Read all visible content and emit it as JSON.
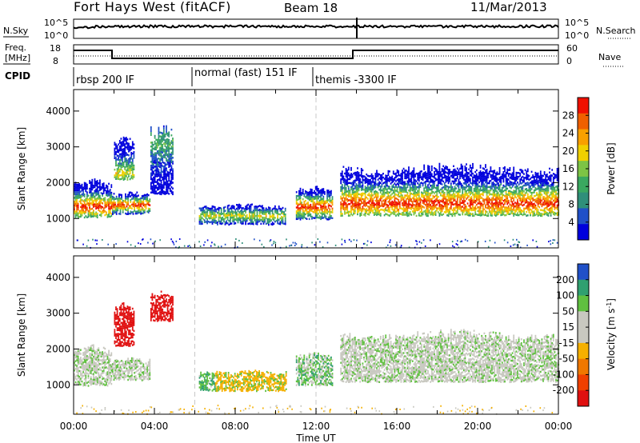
{
  "header": {
    "station": "Fort Hays West (fitACF)",
    "beam": "Beam 18",
    "date": "11/Mar/2013"
  },
  "strip_labels": {
    "nsky": "N.Sky",
    "nsky_top": "10^5",
    "nsky_bottom": "10^0",
    "nsearch": "N.Search",
    "nsearch_top": "10^5",
    "nsearch_bottom": "10^0",
    "freq_line1": "Freq.",
    "freq_line2": "[MHz]",
    "freq_top": "18",
    "freq_bottom": "8",
    "nave": "Nave",
    "nave_top": "60",
    "nave_bottom": "0",
    "cpid": "CPID"
  },
  "cpid_segments": [
    {
      "label": "rbsp 200 IF",
      "start_h": 0
    },
    {
      "label": "normal (fast) 151 IF",
      "start_h": 6
    },
    {
      "label": "themis -3300 IF",
      "start_h": 12
    }
  ],
  "colors": {
    "power_scale": [
      "#0000dd",
      "#2050c8",
      "#2f8f7a",
      "#3aa860",
      "#7dc445",
      "#f0d000",
      "#f8a000",
      "#f06000",
      "#f01000"
    ],
    "velocity_scale": [
      "#e01010",
      "#f04000",
      "#f07800",
      "#f5b000",
      "#c8c8c0",
      "#c8c8c0",
      "#60c040",
      "#30a070",
      "#2050c8",
      "#0000c8"
    ],
    "ground_scatter": "#c8c8c0"
  },
  "chart_data": [
    {
      "type": "heatmap",
      "title": "",
      "xlabel": "",
      "ylabel": "Slant Range [km]",
      "xlim_hours": [
        0,
        24
      ],
      "ylim_km": [
        180,
        4600
      ],
      "x_tick_labels": [],
      "y_ticks": [
        1000,
        2000,
        3000,
        4000
      ],
      "colorbar": {
        "label": "Power [dB]",
        "ticks": [
          4,
          8,
          12,
          16,
          20,
          24,
          28
        ],
        "range": [
          0,
          32
        ]
      },
      "regions": [
        {
          "x": [
            0.0,
            1.9
          ],
          "y": [
            1050,
            2100
          ],
          "peak_km": 1350,
          "level": "strong"
        },
        {
          "x": [
            1.9,
            3.8
          ],
          "y": [
            1150,
            1750
          ],
          "peak_km": 1400,
          "level": "strong"
        },
        {
          "x": [
            2.0,
            3.0
          ],
          "y": [
            2100,
            3300
          ],
          "peak_km": 2300,
          "level": "medium"
        },
        {
          "x": [
            3.8,
            4.9
          ],
          "y": [
            1700,
            3600
          ],
          "peak_km": 3100,
          "level": "weak"
        },
        {
          "x": [
            6.2,
            10.5
          ],
          "y": [
            850,
            1400
          ],
          "peak_km": 1100,
          "level": "medium"
        },
        {
          "x": [
            11.0,
            12.8
          ],
          "y": [
            1000,
            1900
          ],
          "peak_km": 1350,
          "level": "strong"
        },
        {
          "x": [
            13.2,
            24.0
          ],
          "y": [
            1100,
            2500
          ],
          "peak_km": 1450,
          "level": "strong"
        }
      ]
    },
    {
      "type": "heatmap",
      "title": "",
      "xlabel": "Time UT",
      "ylabel": "Slant Range [km]",
      "xlim_hours": [
        0,
        24
      ],
      "ylim_km": [
        180,
        4600
      ],
      "x_tick_labels": [
        "00:00",
        "04:00",
        "08:00",
        "12:00",
        "16:00",
        "20:00",
        "00:00"
      ],
      "y_ticks": [
        1000,
        2000,
        3000,
        4000
      ],
      "colorbar": {
        "label": "Velocity [m s^-1]",
        "ticks": [
          200,
          100,
          50,
          15,
          -15,
          -50,
          -100,
          -200
        ],
        "range": [
          -250,
          250
        ]
      },
      "regions": [
        {
          "x": [
            0.0,
            1.9
          ],
          "y": [
            1000,
            2100
          ],
          "velocity": 0
        },
        {
          "x": [
            1.9,
            3.8
          ],
          "y": [
            1150,
            1750
          ],
          "velocity": 0
        },
        {
          "x": [
            2.0,
            3.0
          ],
          "y": [
            2100,
            3300
          ],
          "velocity": -220
        },
        {
          "x": [
            3.8,
            4.9
          ],
          "y": [
            2800,
            3600
          ],
          "velocity": -200
        },
        {
          "x": [
            6.2,
            7.0
          ],
          "y": [
            850,
            1400
          ],
          "velocity": 30
        },
        {
          "x": [
            7.0,
            10.5
          ],
          "y": [
            850,
            1400
          ],
          "velocity": -40
        },
        {
          "x": [
            11.0,
            12.8
          ],
          "y": [
            1000,
            1900
          ],
          "velocity": 20
        },
        {
          "x": [
            13.2,
            24.0
          ],
          "y": [
            1100,
            2500
          ],
          "velocity": 0
        }
      ]
    }
  ]
}
